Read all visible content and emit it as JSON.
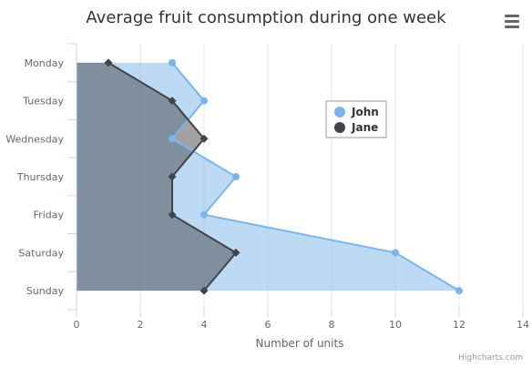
{
  "chart_data": {
    "type": "area",
    "orientation": "inverted",
    "title": "Average fruit consumption during one week",
    "xlabel": "",
    "ylabel": "Number of units",
    "categories": [
      "Monday",
      "Tuesday",
      "Wednesday",
      "Thursday",
      "Friday",
      "Saturday",
      "Sunday"
    ],
    "series": [
      {
        "name": "John",
        "values": [
          3,
          4,
          3,
          5,
          4,
          10,
          12
        ],
        "color": "#7cb5ec",
        "marker": "circle"
      },
      {
        "name": "Jane",
        "values": [
          1,
          3,
          4,
          3,
          3,
          5,
          4
        ],
        "color": "#434348",
        "marker": "diamond"
      }
    ],
    "value_axis": {
      "min": 0,
      "max": 14,
      "ticks": [
        0,
        2,
        4,
        6,
        8,
        10,
        12,
        14
      ]
    },
    "grid": true,
    "legend_position": "center-right",
    "credits": "Highcharts.com"
  },
  "toolbar": {
    "menu_icon": "hamburger-menu-icon"
  }
}
